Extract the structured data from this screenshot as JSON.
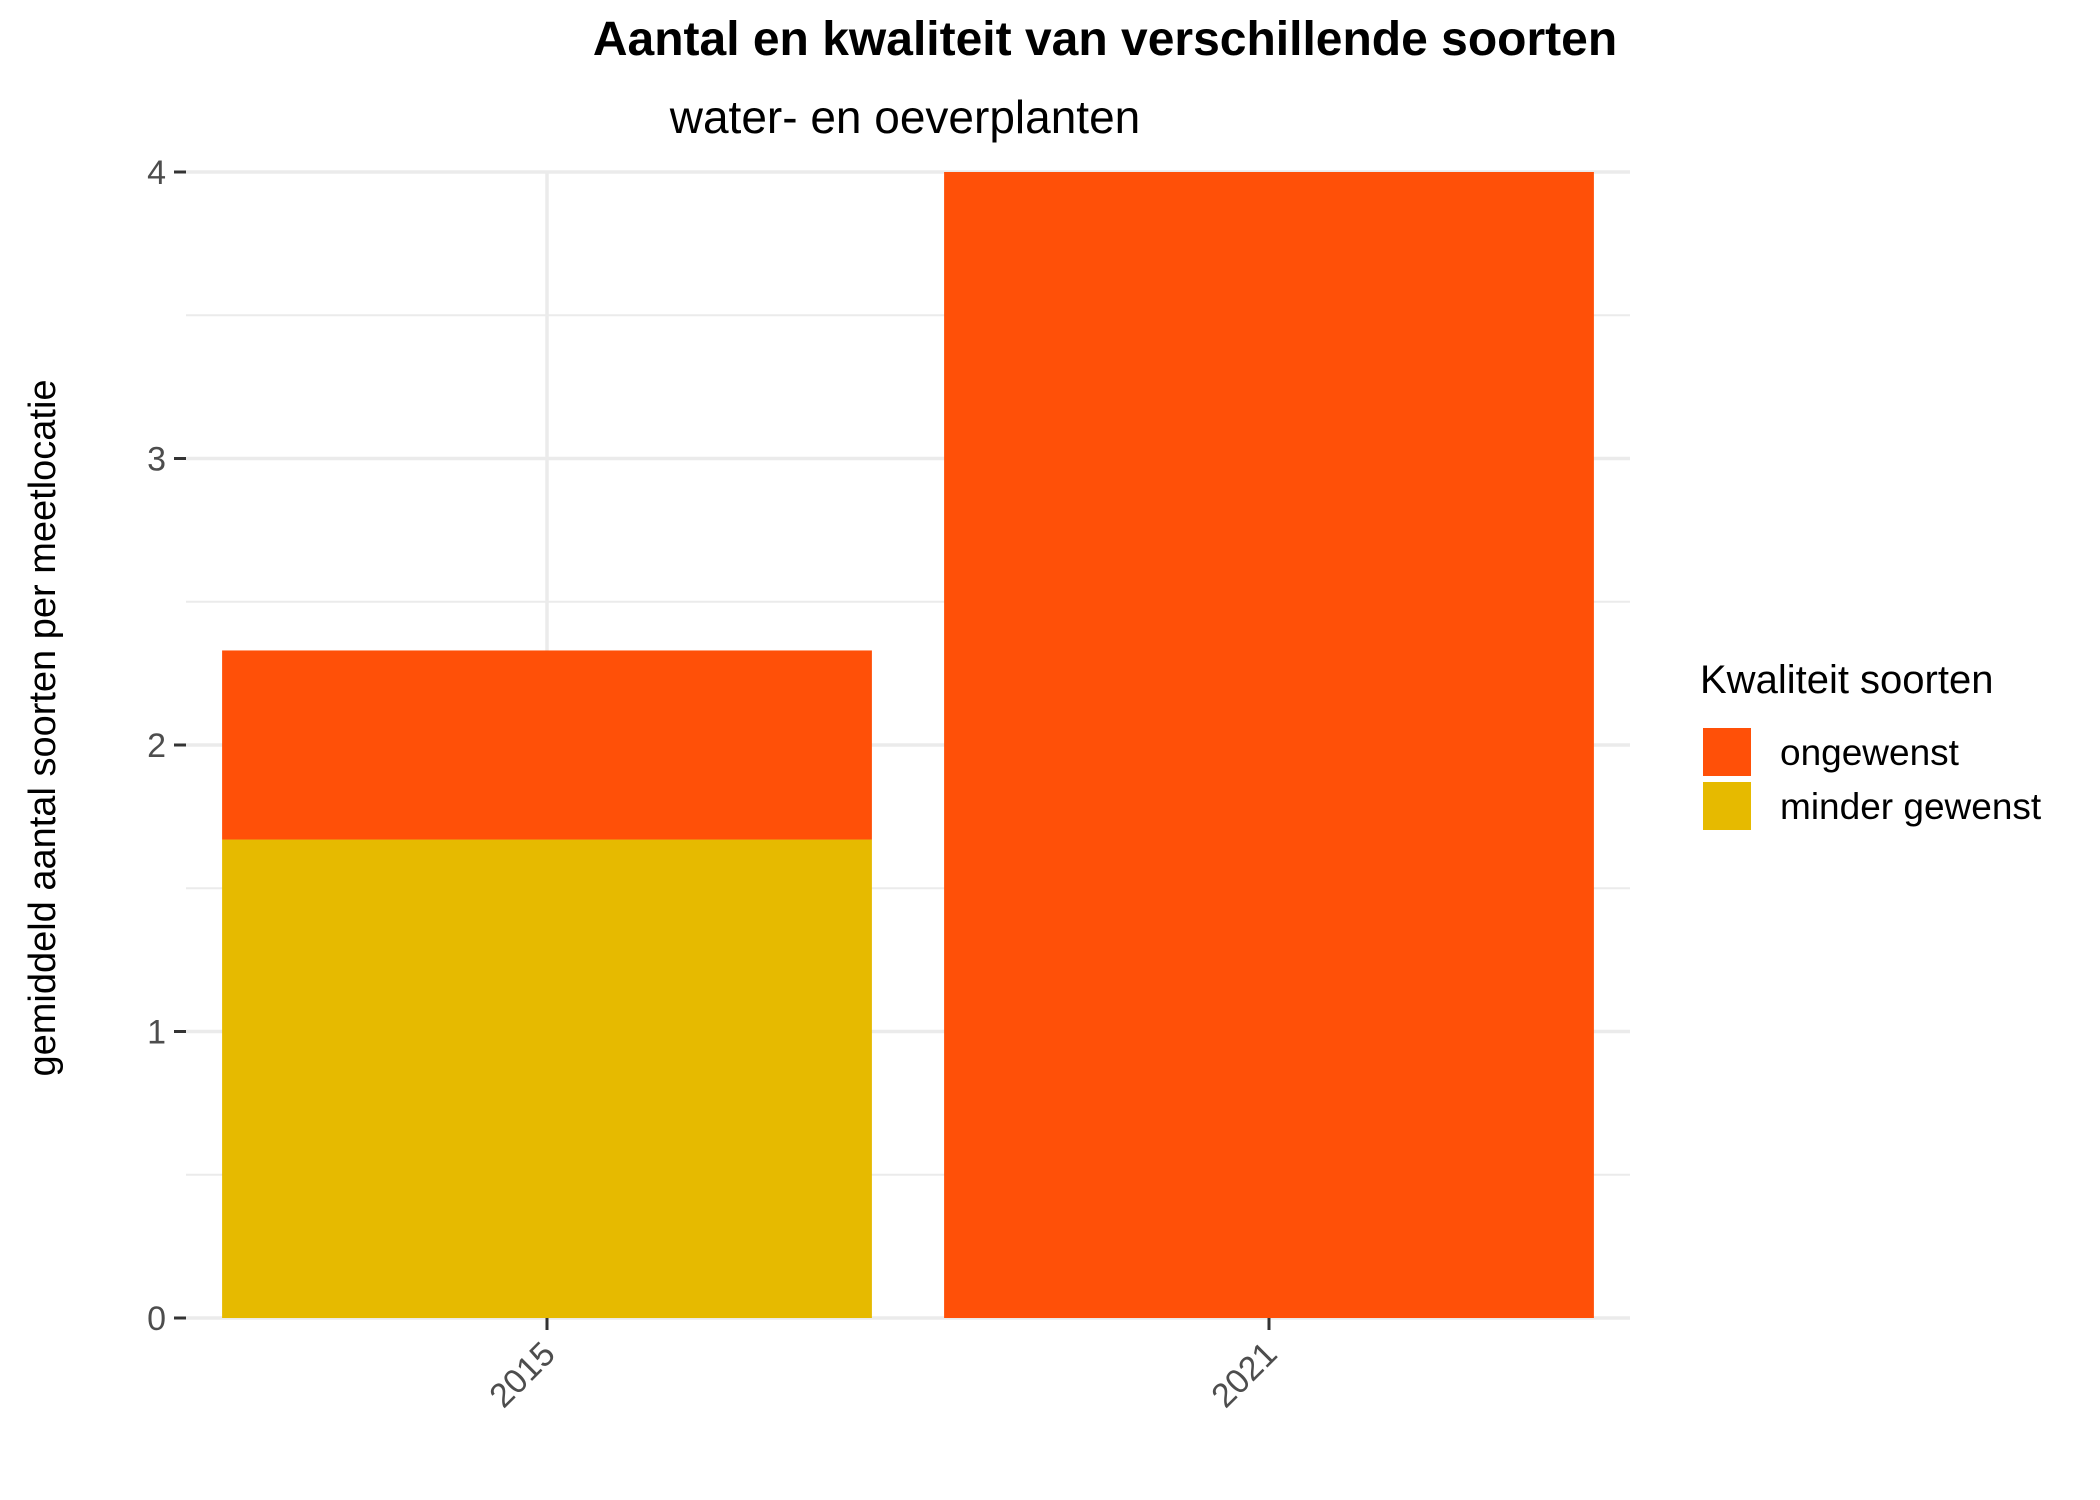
{
  "chart_data": {
    "type": "bar",
    "stacked": true,
    "title": "Aantal en kwaliteit van verschillende soorten",
    "subtitle": "water- en oeverplanten",
    "xlabel": "",
    "ylabel": "gemiddeld aantal soorten per meetlocatie",
    "categories": [
      "2015",
      "2021"
    ],
    "series": [
      {
        "name": "minder gewenst",
        "color": "#E6BA00",
        "values": [
          1.67,
          0
        ]
      },
      {
        "name": "ongewenst",
        "color": "#FF5008",
        "values": [
          0.66,
          4.0
        ]
      }
    ],
    "ylim": [
      0,
      4
    ],
    "yticks": [
      "0",
      "1",
      "2",
      "3",
      "4"
    ],
    "grid": true,
    "legend": {
      "title": "Kwaliteit soorten",
      "position": "right",
      "entries": [
        {
          "label": "ongewenst",
          "color": "#FF5008"
        },
        {
          "label": "minder gewenst",
          "color": "#E6BA00"
        }
      ]
    }
  }
}
